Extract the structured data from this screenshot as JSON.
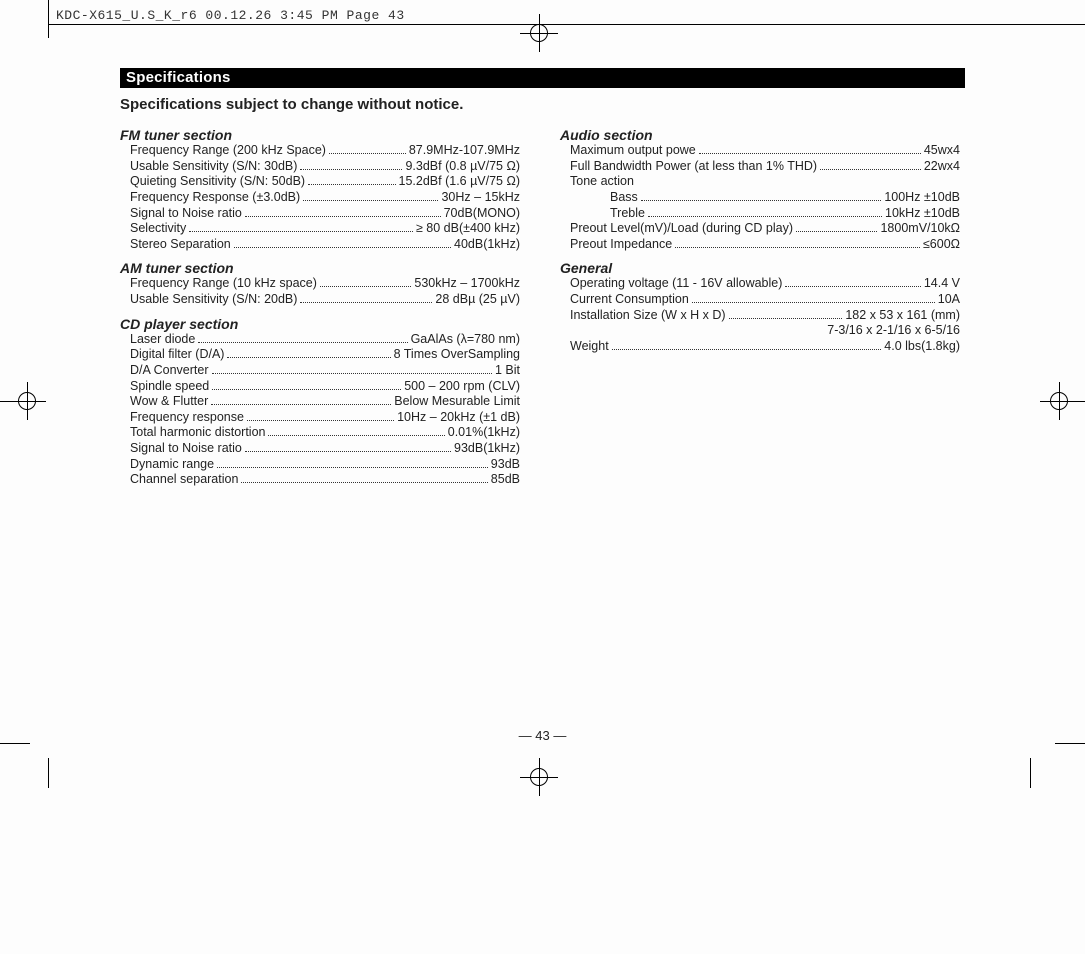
{
  "slug": "KDC-X615_U.S_K_r6  00.12.26 3:45 PM  Page 43",
  "header_bar": "Specifications",
  "notice": "Specifications subject to change without notice.",
  "page_number": "— 43 —",
  "left_sections": [
    {
      "title": "FM tuner section",
      "items": [
        {
          "label": "Frequency Range (200 kHz Space)",
          "value": "87.9MHz-107.9MHz"
        },
        {
          "label": "Usable Sensitivity (S/N: 30dB)",
          "value": "9.3dBf (0.8 µV/75 Ω)"
        },
        {
          "label": "Quieting Sensitivity (S/N: 50dB)",
          "value": "15.2dBf (1.6 µV/75 Ω)"
        },
        {
          "label": "Frequency Response (±3.0dB)",
          "value": "30Hz – 15kHz"
        },
        {
          "label": "Signal to Noise ratio",
          "value": "70dB(MONO)"
        },
        {
          "label": "Selectivity",
          "value": "≥ 80 dB(±400 kHz)"
        },
        {
          "label": "Stereo Separation",
          "value": "40dB(1kHz)"
        }
      ]
    },
    {
      "title": "AM tuner section",
      "items": [
        {
          "label": "Frequency Range (10 kHz space)",
          "value": "530kHz – 1700kHz"
        },
        {
          "label": "Usable Sensitivity (S/N: 20dB)",
          "value": "28 dBµ (25 µV)"
        }
      ]
    },
    {
      "title": "CD player section",
      "items": [
        {
          "label": "Laser diode",
          "value": "GaAlAs (λ=780 nm)"
        },
        {
          "label": "Digital filter (D/A)",
          "value": "8 Times OverSampling"
        },
        {
          "label": "D/A Converter",
          "value": "1 Bit"
        },
        {
          "label": "Spindle speed",
          "value": "500 – 200 rpm (CLV)"
        },
        {
          "label": "Wow & Flutter",
          "value": "Below Mesurable Limit"
        },
        {
          "label": "Frequency response",
          "value": "10Hz – 20kHz (±1 dB)"
        },
        {
          "label": "Total harmonic distortion",
          "value": "0.01%(1kHz)"
        },
        {
          "label": "Signal to Noise ratio",
          "value": "93dB(1kHz)"
        },
        {
          "label": "Dynamic range",
          "value": "93dB"
        },
        {
          "label": "Channel separation",
          "value": "85dB"
        }
      ]
    }
  ],
  "right_sections": [
    {
      "title": "Audio section",
      "items": [
        {
          "label": "Maximum output powe",
          "value": "45wx4"
        },
        {
          "label": "Full Bandwidth Power (at less than 1% THD)",
          "value": "22wx4"
        },
        {
          "label": "Tone action",
          "value": ""
        },
        {
          "label": "Bass",
          "value": "100Hz  ±10dB",
          "sub": true
        },
        {
          "label": "Treble",
          "value": "10kHz  ±10dB",
          "sub": true
        },
        {
          "label": "Preout Level(mV)/Load (during CD play)",
          "value": "1800mV/10kΩ"
        },
        {
          "label": "Preout Impedance",
          "value": "≤600Ω"
        }
      ]
    },
    {
      "title": "General",
      "items": [
        {
          "label": "Operating voltage (11 - 16V allowable)",
          "value": "14.4 V"
        },
        {
          "label": "Current Consumption",
          "value": "10A"
        },
        {
          "label": "Installation Size  (W x H x D)",
          "value": "182 x 53 x 161 (mm)"
        },
        {
          "label": "",
          "value": "7-3/16 x 2-1/16 x 6-5/16",
          "cont": true
        },
        {
          "label": "Weight",
          "value": "4.0 lbs(1.8kg)"
        }
      ]
    }
  ]
}
